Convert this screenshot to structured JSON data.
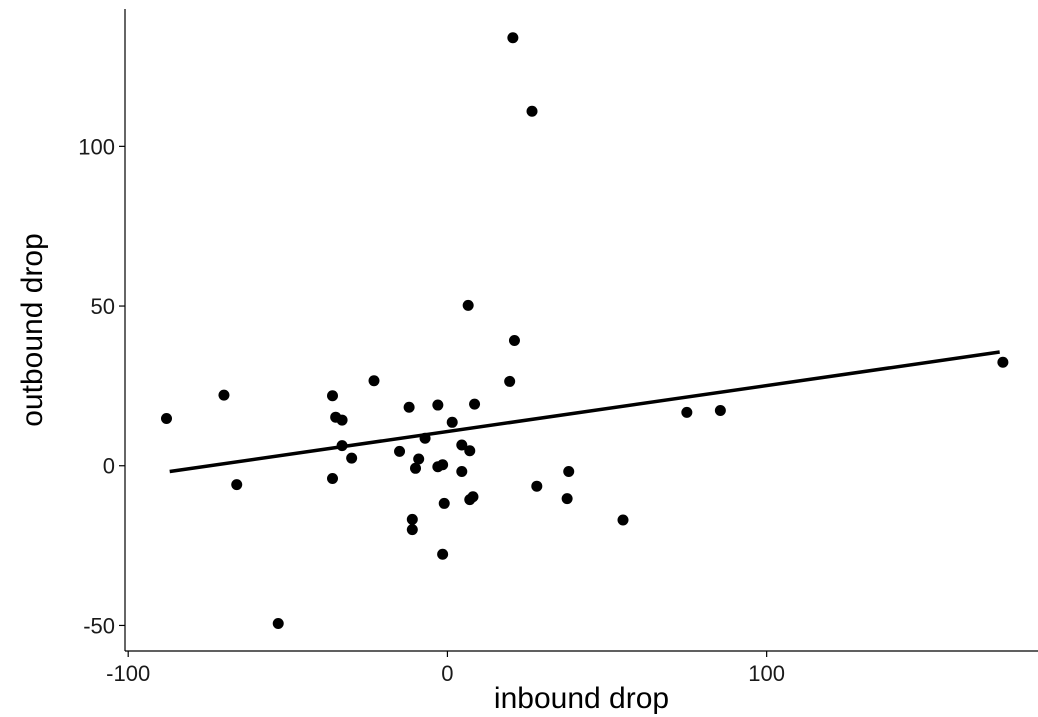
{
  "chart_data": {
    "type": "scatter",
    "xlabel": "inbound drop",
    "ylabel": "outbound drop",
    "xlim": [
      -101,
      185
    ],
    "ylim": [
      -58,
      143
    ],
    "x_ticks": [
      -100,
      0,
      100
    ],
    "x_tick_labels": [
      "-100",
      "0",
      "100"
    ],
    "y_ticks": [
      -50,
      0,
      50,
      100
    ],
    "y_tick_labels": [
      "-50",
      "0",
      "50",
      "100"
    ],
    "grid": false,
    "legend": "none",
    "point_color": "#000000",
    "line_color": "#000000",
    "points": [
      {
        "x": -88,
        "y": 14.8
      },
      {
        "x": -70,
        "y": 22.1
      },
      {
        "x": -66,
        "y": -5.9
      },
      {
        "x": -53,
        "y": -49.4
      },
      {
        "x": -36,
        "y": 21.9
      },
      {
        "x": -36,
        "y": -4.0
      },
      {
        "x": -35,
        "y": 15.2
      },
      {
        "x": -33,
        "y": 14.3
      },
      {
        "x": -33,
        "y": 6.3
      },
      {
        "x": -30,
        "y": 2.4
      },
      {
        "x": -23,
        "y": 26.6
      },
      {
        "x": -15,
        "y": 4.5
      },
      {
        "x": -12,
        "y": 18.3
      },
      {
        "x": -11,
        "y": -16.8
      },
      {
        "x": -11,
        "y": -20.0
      },
      {
        "x": -10,
        "y": -0.8
      },
      {
        "x": -9,
        "y": 2.1
      },
      {
        "x": -7,
        "y": 8.6
      },
      {
        "x": -3,
        "y": 19.0
      },
      {
        "x": -3,
        "y": -0.3
      },
      {
        "x": -1.5,
        "y": 0.3
      },
      {
        "x": -1.5,
        "y": -27.7
      },
      {
        "x": -1,
        "y": -11.8
      },
      {
        "x": 1.5,
        "y": 13.6
      },
      {
        "x": 4.5,
        "y": 6.5
      },
      {
        "x": 4.5,
        "y": -1.8
      },
      {
        "x": 6.5,
        "y": 50.2
      },
      {
        "x": 7,
        "y": 4.7
      },
      {
        "x": 7,
        "y": -10.6
      },
      {
        "x": 8,
        "y": -9.7
      },
      {
        "x": 8.5,
        "y": 19.3
      },
      {
        "x": 19.5,
        "y": 26.4
      },
      {
        "x": 20.5,
        "y": 134.0
      },
      {
        "x": 21,
        "y": 39.2
      },
      {
        "x": 26.5,
        "y": 111.0
      },
      {
        "x": 28,
        "y": -6.4
      },
      {
        "x": 37.5,
        "y": -10.3
      },
      {
        "x": 38,
        "y": -1.8
      },
      {
        "x": 55,
        "y": -17.0
      },
      {
        "x": 75,
        "y": 16.7
      },
      {
        "x": 85.5,
        "y": 17.3
      },
      {
        "x": 174,
        "y": 32.4
      }
    ],
    "fit_line": {
      "x": [
        -87,
        173
      ],
      "y": [
        -1.8,
        35.6
      ]
    }
  }
}
